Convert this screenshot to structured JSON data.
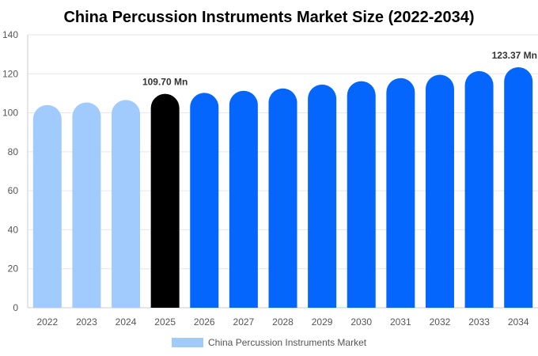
{
  "chart_data": {
    "type": "bar",
    "title": "China Percussion Instruments Market Size (2022-2034)",
    "xlabel": "",
    "ylabel": "",
    "categories": [
      "2022",
      "2023",
      "2024",
      "2025",
      "2026",
      "2027",
      "2028",
      "2029",
      "2030",
      "2031",
      "2032",
      "2033",
      "2034"
    ],
    "series": [
      {
        "name": "China Percussion Instruments Market",
        "values": [
          104.0,
          105.3,
          106.6,
          109.7,
          110.2,
          111.3,
          112.5,
          114.5,
          116.2,
          117.8,
          119.5,
          121.4,
          123.37
        ]
      }
    ],
    "ylim": [
      0,
      140
    ],
    "yticks": [
      0,
      20,
      40,
      60,
      80,
      100,
      120,
      140
    ],
    "grid": true,
    "legend_position": "bottom-center",
    "data_labels": [
      {
        "category": "2025",
        "text": "109.70 Mn"
      },
      {
        "category": "2034",
        "text": "123.37 Mn"
      }
    ],
    "colors": {
      "historical": "#a0cbfc",
      "base_year": "#000000",
      "forecast": "#0466fd",
      "legend_swatch": "#a0cbfc"
    },
    "bar_color_groups": [
      "historical",
      "historical",
      "historical",
      "base_year",
      "forecast",
      "forecast",
      "forecast",
      "forecast",
      "forecast",
      "forecast",
      "forecast",
      "forecast",
      "forecast"
    ]
  }
}
